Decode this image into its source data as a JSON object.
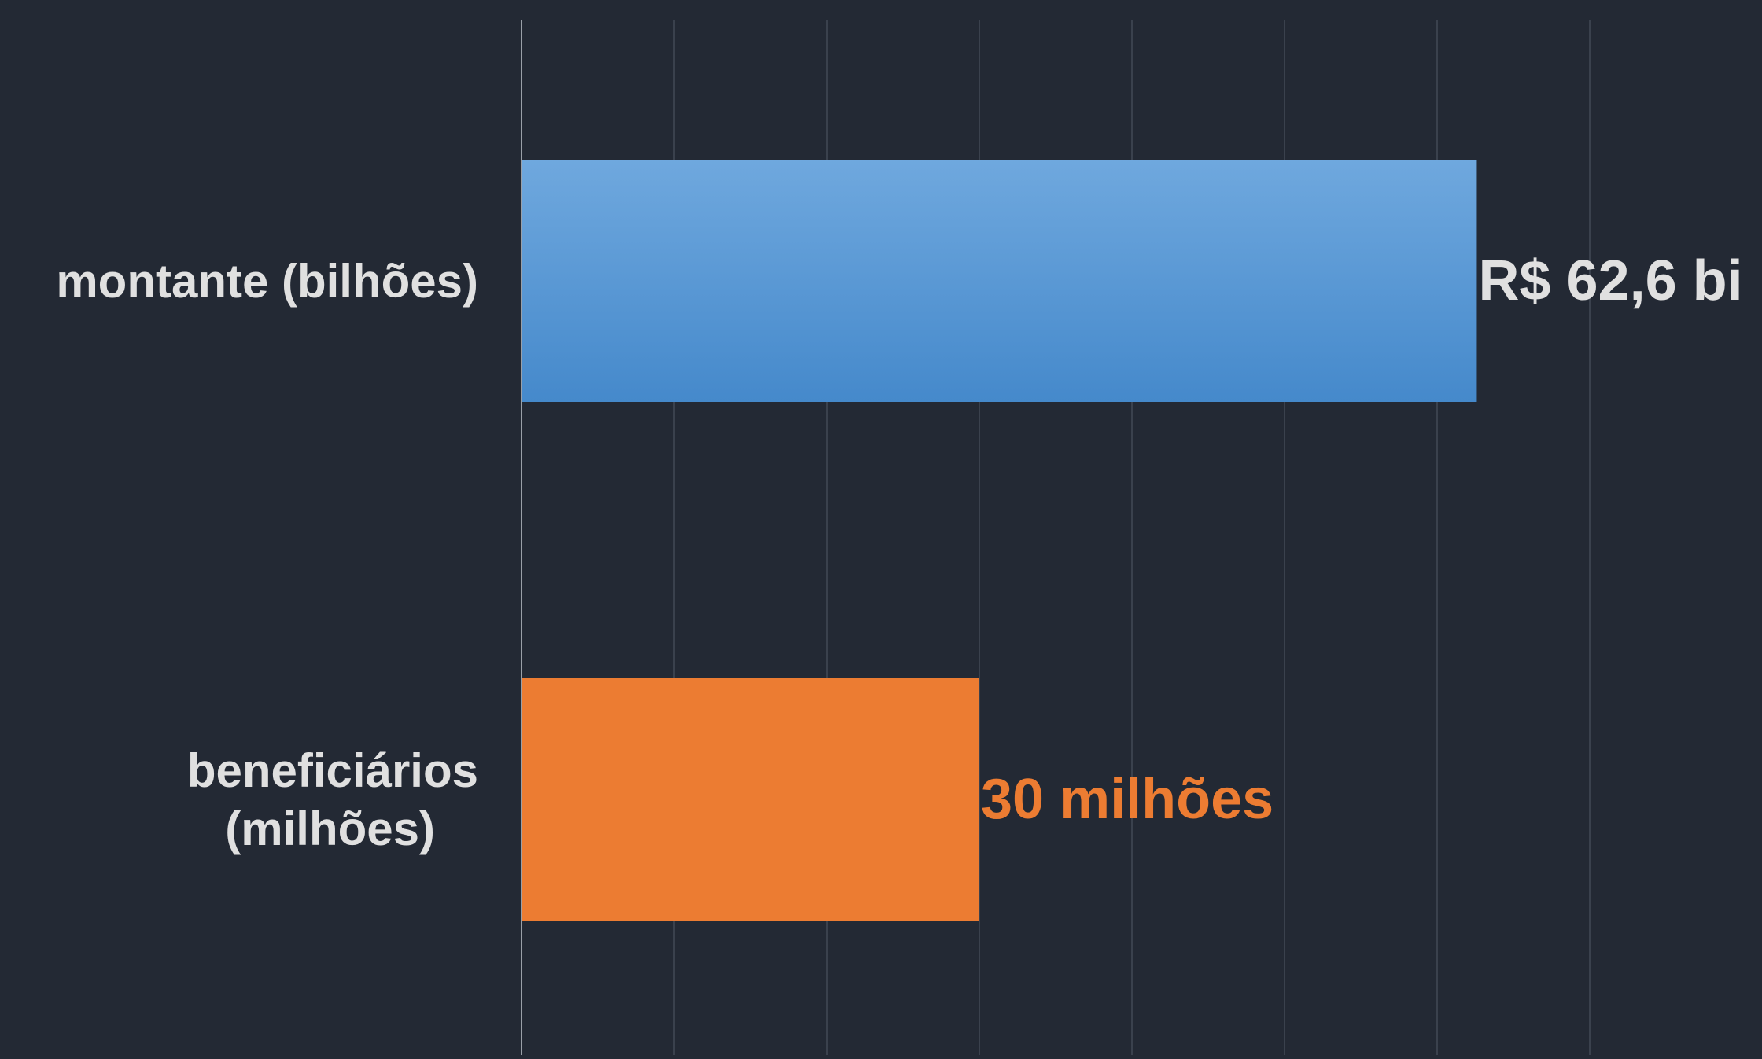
{
  "chart_data": {
    "type": "bar",
    "orientation": "horizontal",
    "categories": [
      "montante (bilhões)",
      "beneficiários (milhões)"
    ],
    "values": [
      62.6,
      30
    ],
    "data_labels": [
      "R$ 62,6 bi",
      "30 milhões"
    ],
    "xlim": [
      0,
      70
    ],
    "x_gridline_step": 10,
    "grid": true,
    "legend": "none",
    "title": "",
    "xlabel": "",
    "ylabel": ""
  },
  "colors": {
    "background": "#232934",
    "gridline": "#3a414d",
    "axis": "#9aa0a8",
    "category_label": "#e0e0e0",
    "bar_montante_top": "#6fa8de",
    "bar_montante_bottom": "#4589cb",
    "bar_beneficiarios": "#ec7c32",
    "label_montante": "#e0e0e0",
    "label_beneficiarios": "#ec7c32"
  }
}
